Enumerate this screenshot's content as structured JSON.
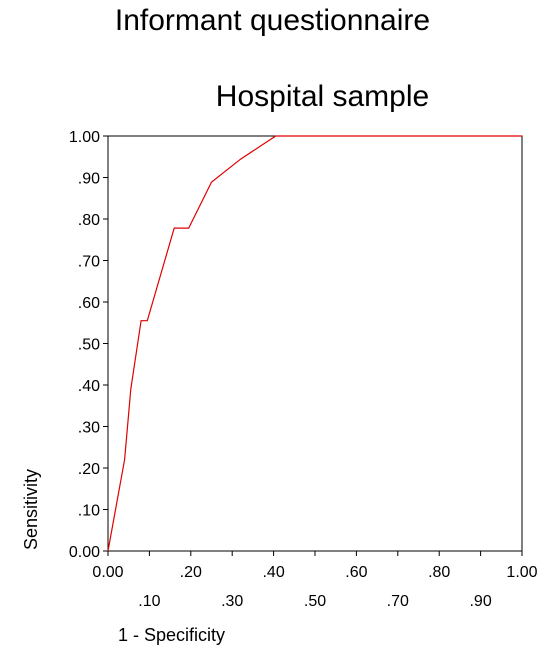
{
  "chart_data": {
    "type": "line",
    "title": "Informant questionnaire",
    "subtitle": "Hospital sample",
    "xlabel": "1 - Specificity",
    "ylabel": "Sensitivity",
    "xlim": [
      0,
      1
    ],
    "ylim": [
      0,
      1
    ],
    "x_ticks_row1": [
      0.0,
      0.2,
      0.4,
      0.6,
      0.8,
      1.0
    ],
    "x_ticks_row1_labels": [
      "0.00",
      ".20",
      ".40",
      ".60",
      ".80",
      "1.00"
    ],
    "x_ticks_row2": [
      0.1,
      0.3,
      0.5,
      0.7,
      0.9
    ],
    "x_ticks_row2_labels": [
      ".10",
      ".30",
      ".50",
      ".70",
      ".90"
    ],
    "y_ticks": [
      0.0,
      0.1,
      0.2,
      0.3,
      0.4,
      0.5,
      0.6,
      0.7,
      0.8,
      0.9,
      1.0
    ],
    "y_tick_labels": [
      "0.00",
      ".10",
      ".20",
      ".30",
      ".40",
      ".50",
      ".60",
      ".70",
      ".80",
      ".90",
      "1.00"
    ],
    "grid": false,
    "line_color": "#e00000",
    "series": [
      {
        "x": [
          0.0,
          0.04,
          0.055,
          0.08,
          0.095,
          0.16,
          0.195,
          0.25,
          0.32,
          0.405,
          1.0
        ],
        "y": [
          0.0,
          0.22,
          0.39,
          0.555,
          0.555,
          0.778,
          0.778,
          0.889,
          0.944,
          1.0,
          1.0
        ]
      }
    ]
  }
}
